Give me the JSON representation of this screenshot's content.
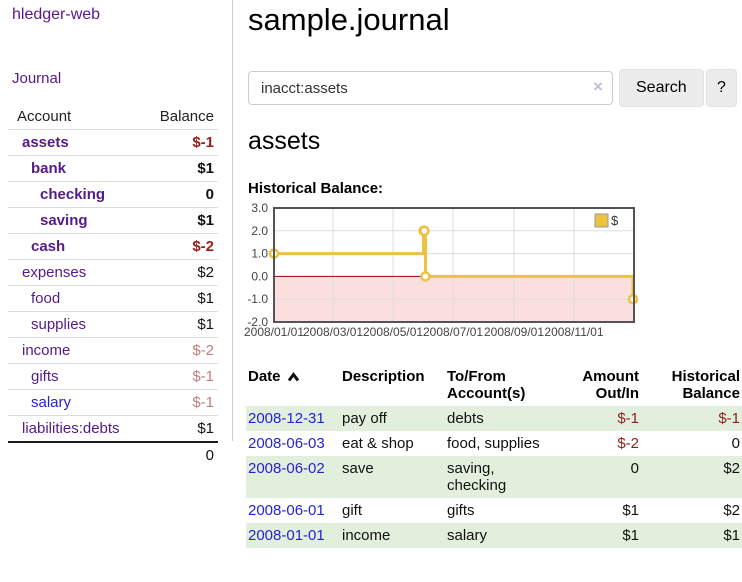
{
  "colors": {
    "link_purple": "#551a8b",
    "link_blue": "#2323d6",
    "negative_strong": "#9c1b1b",
    "negative_soft": "#c08080",
    "register_negative": "#8d1f1f",
    "register_row_alt": "#e3efdd",
    "series_yellow": "#EDC240"
  },
  "sidebar": {
    "app_title": "hledger-web",
    "journal_link": "Journal",
    "accounts": {
      "account_header": "Account",
      "balance_header": "Balance",
      "rows": [
        {
          "name": "assets",
          "balance": "$-1",
          "level": 0,
          "bold": true
        },
        {
          "name": "bank",
          "balance": "$1",
          "level": 1,
          "bold": true
        },
        {
          "name": "checking",
          "balance": "0",
          "level": 2,
          "bold": true
        },
        {
          "name": "saving",
          "balance": "$1",
          "level": 2,
          "bold": true
        },
        {
          "name": "cash",
          "balance": "$-2",
          "level": 1,
          "bold": true
        },
        {
          "name": "expenses",
          "balance": "$2",
          "level": 0,
          "bold": false
        },
        {
          "name": "food",
          "balance": "$1",
          "level": 1,
          "bold": false
        },
        {
          "name": "supplies",
          "balance": "$1",
          "level": 1,
          "bold": false
        },
        {
          "name": "income",
          "balance": "$-2",
          "level": 0,
          "bold": false
        },
        {
          "name": "gifts",
          "balance": "$-1",
          "level": 1,
          "bold": false
        },
        {
          "name": "salary",
          "balance": "$-1",
          "level": 1,
          "bold": false,
          "unvisited": true
        },
        {
          "name": "liabilities:debts",
          "balance": "$1",
          "level": 0,
          "bold": false
        }
      ],
      "total": "0"
    }
  },
  "main": {
    "title": "sample.journal",
    "search": {
      "value": "inacct:assets",
      "clear_icon": "×",
      "button_label": "Search",
      "help_label": "?"
    },
    "account_heading": "assets",
    "chart_title": "Historical Balance:"
  },
  "chart_data": {
    "type": "line",
    "step": true,
    "title": "Historical Balance:",
    "xlim": [
      "2008-01-01",
      "2009-01-01"
    ],
    "ylim": [
      -2,
      3
    ],
    "yticks": [
      [
        3,
        "3.0"
      ],
      [
        2,
        "2.0"
      ],
      [
        1,
        "1.0"
      ],
      [
        0,
        "0.0"
      ],
      [
        -1,
        "-1.0"
      ],
      [
        -2,
        "-2.0"
      ]
    ],
    "xticks": [
      [
        "2008-01-01",
        "2008/01/01"
      ],
      [
        "2008-03-01",
        "2008/03/01"
      ],
      [
        "2008-05-01",
        "2008/05/01"
      ],
      [
        "2008-07-01",
        "2008/07/01"
      ],
      [
        "2008-09-01",
        "2008/09/01"
      ],
      [
        "2008-11-01",
        "2008/11/01"
      ]
    ],
    "series": [
      {
        "name": "$",
        "color": "#EDC240",
        "points": [
          [
            "2008-01-01",
            1
          ],
          [
            "2008-06-01",
            2
          ],
          [
            "2008-06-02",
            2
          ],
          [
            "2008-06-03",
            0
          ],
          [
            "2008-12-31",
            -1
          ]
        ]
      }
    ],
    "legend_position": "top-right",
    "grid": true,
    "colors": {
      "negative_fill": "#fbdede",
      "zero_line": "#990000",
      "grid": "#dddddd",
      "border": "#545454",
      "legend_border": "#999999"
    }
  },
  "register": {
    "headers": {
      "date": "Date",
      "description": "Description",
      "accounts": "To/From Account(s)",
      "amount": "Amount Out/In",
      "balance": "Historical Balance"
    },
    "sort": {
      "column": "date",
      "direction": "ascending",
      "icon": "chevron-up"
    },
    "rows": [
      {
        "date": "2008-12-31",
        "description": "pay off",
        "accounts": "debts",
        "amount": "$-1",
        "balance": "$-1"
      },
      {
        "date": "2008-06-03",
        "description": "eat & shop",
        "accounts": "food, supplies",
        "amount": "$-2",
        "balance": "0"
      },
      {
        "date": "2008-06-02",
        "description": "save",
        "accounts": "saving, checking",
        "amount": "0",
        "balance": "$2"
      },
      {
        "date": "2008-06-01",
        "description": "gift",
        "accounts": "gifts",
        "amount": "$1",
        "balance": "$2"
      },
      {
        "date": "2008-01-01",
        "description": "income",
        "accounts": "salary",
        "amount": "$1",
        "balance": "$1"
      }
    ]
  }
}
